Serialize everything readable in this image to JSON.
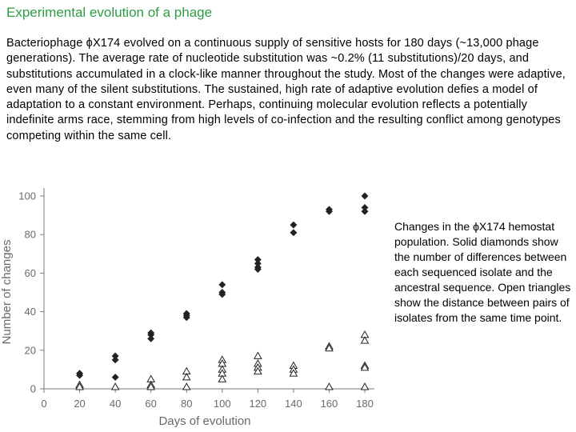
{
  "slide": {
    "title": "Experimental evolution of  a phage",
    "intro_prefix": "Bacteriophage ",
    "phi_symbol": "ϕ",
    "intro_body": "X174 evolved on a continuous supply of sensitive hosts for 180 days (~13,000 phage generations). The average rate of nucleotide substitution was ~0.2% (11 substitutions)/20 days, and substitutions accumulated in a clock-like manner throughout the study. Most of the changes were adaptive, even many of the silent substitutions. The sustained, high rate of adaptive evolution defies a model of adaptation to a constant environment. Perhaps, continuing molecular evolution reflects a potentially indefinite arms race, stemming from high levels of co-infection and the resulting conflict among genotypes competing within the same cell.",
    "caption_prefix": "Changes in the ",
    "caption_body": "X174 hemostat population. Solid diamonds show the number of differences between each sequenced isolate and the ancestral sequence. Open triangles show the distance between pairs of isolates from the same time point."
  },
  "chart_data": {
    "type": "scatter",
    "title": "",
    "xlabel": "Days of evolution",
    "ylabel": "Number of changes",
    "xlim": [
      0,
      180
    ],
    "ylim": [
      0,
      100
    ],
    "xticks": [
      0,
      20,
      40,
      60,
      80,
      100,
      120,
      140,
      160,
      180
    ],
    "yticks": [
      0,
      20,
      40,
      60,
      80,
      100
    ],
    "grid": false,
    "series": [
      {
        "marker": "filled-diamond",
        "color": "#222222",
        "points": [
          [
            20,
            8
          ],
          [
            20,
            7
          ],
          [
            40,
            17
          ],
          [
            40,
            15
          ],
          [
            40,
            6
          ],
          [
            60,
            29
          ],
          [
            60,
            28
          ],
          [
            60,
            26
          ],
          [
            80,
            39
          ],
          [
            80,
            38
          ],
          [
            80,
            37
          ],
          [
            100,
            54
          ],
          [
            100,
            50
          ],
          [
            100,
            49
          ],
          [
            120,
            67
          ],
          [
            120,
            65
          ],
          [
            120,
            63
          ],
          [
            120,
            62
          ],
          [
            140,
            85
          ],
          [
            140,
            81
          ],
          [
            160,
            93
          ],
          [
            160,
            92
          ],
          [
            180,
            100
          ],
          [
            180,
            94
          ],
          [
            180,
            92
          ]
        ]
      },
      {
        "marker": "open-triangle",
        "color": "#222222",
        "points": [
          [
            20,
            2
          ],
          [
            20,
            1
          ],
          [
            40,
            1
          ],
          [
            60,
            5
          ],
          [
            60,
            2
          ],
          [
            60,
            1
          ],
          [
            80,
            9
          ],
          [
            80,
            6
          ],
          [
            80,
            1
          ],
          [
            100,
            15
          ],
          [
            100,
            13
          ],
          [
            100,
            10
          ],
          [
            100,
            8
          ],
          [
            100,
            5
          ],
          [
            120,
            17
          ],
          [
            120,
            13
          ],
          [
            120,
            11
          ],
          [
            120,
            9
          ],
          [
            140,
            12
          ],
          [
            140,
            10
          ],
          [
            140,
            8
          ],
          [
            160,
            22
          ],
          [
            160,
            21
          ],
          [
            160,
            1
          ],
          [
            180,
            28
          ],
          [
            180,
            25
          ],
          [
            180,
            12
          ],
          [
            180,
            11
          ],
          [
            180,
            1
          ]
        ]
      }
    ]
  }
}
